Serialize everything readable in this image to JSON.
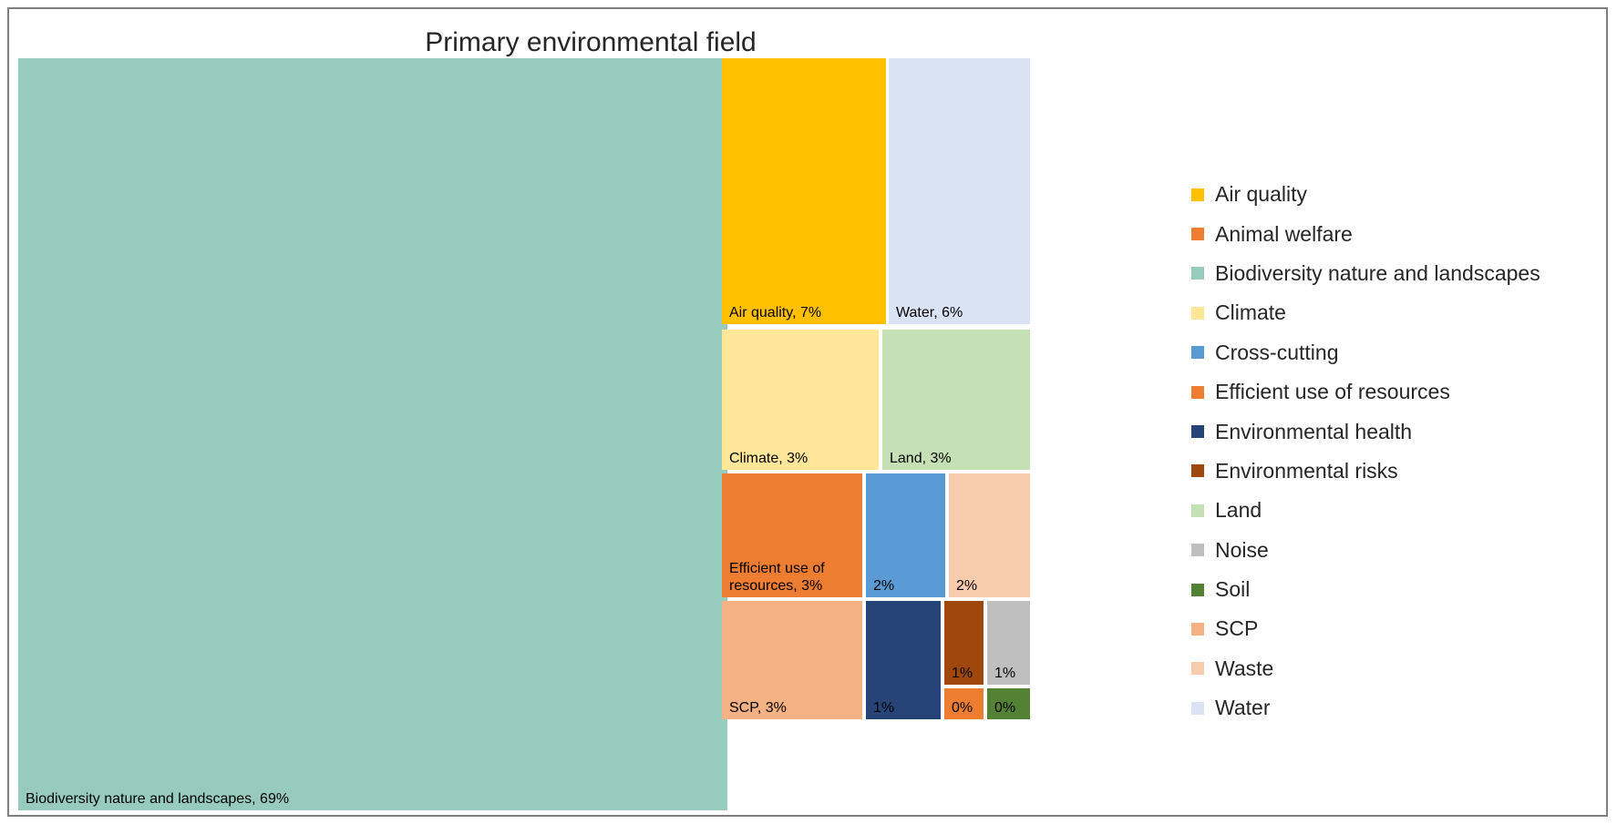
{
  "chart_data": {
    "type": "treemap",
    "title": "Primary environmental field",
    "value_unit": "%",
    "legend_position": "right",
    "series": [
      {
        "name": "Air quality",
        "value": 7,
        "color": "#FFC000"
      },
      {
        "name": "Animal welfare",
        "value": 0,
        "color": "#ED7D31"
      },
      {
        "name": "Biodiversity nature and landscapes",
        "value": 69,
        "color": "#96CBBD"
      },
      {
        "name": "Climate",
        "value": 3,
        "color": "#FFE699"
      },
      {
        "name": "Cross-cutting",
        "value": 2,
        "color": "#5B9BD5"
      },
      {
        "name": "Efficient use of resources",
        "value": 3,
        "color": "#ED7D31"
      },
      {
        "name": "Environmental health",
        "value": 1,
        "color": "#264478"
      },
      {
        "name": "Environmental risks",
        "value": 1,
        "color": "#9E480E"
      },
      {
        "name": "Land",
        "value": 3,
        "color": "#C5E0B4"
      },
      {
        "name": "Noise",
        "value": 1,
        "color": "#BFBFBF"
      },
      {
        "name": "Soil",
        "value": 0,
        "color": "#548235"
      },
      {
        "name": "SCP",
        "value": 3,
        "color": "#F4B183"
      },
      {
        "name": "Waste",
        "value": 2,
        "color": "#F8CBAD"
      },
      {
        "name": "Water",
        "value": 6,
        "color": "#DAE3F3"
      }
    ],
    "tile_labels": [
      {
        "series": "Biodiversity nature and landscapes",
        "text": "Biodiversity nature and landscapes, 69%",
        "color": "#000000"
      },
      {
        "series": "Air quality",
        "text": "Air quality, 7%",
        "color": "#000000"
      },
      {
        "series": "Water",
        "text": "Water, 6%",
        "color": "#000000"
      },
      {
        "series": "Climate",
        "text": "Climate, 3%",
        "color": "#000000"
      },
      {
        "series": "Land",
        "text": "Land, 3%",
        "color": "#000000"
      },
      {
        "series": "Efficient use of resources",
        "text": "Efficient use of\nresources, 3%",
        "color": "#000000"
      },
      {
        "series": "Cross-cutting",
        "text": "2%",
        "color": "#000000"
      },
      {
        "series": "Waste",
        "text": "2%",
        "color": "#000000"
      },
      {
        "series": "SCP",
        "text": "SCP, 3%",
        "color": "#000000"
      },
      {
        "series": "Environmental health",
        "text": "1%",
        "color": "#000000"
      },
      {
        "series": "Environmental risks",
        "text": "1%",
        "color": "#000000"
      },
      {
        "series": "Noise",
        "text": "1%",
        "color": "#000000"
      },
      {
        "series": "Animal welfare",
        "text": "0%",
        "color": "#000000"
      },
      {
        "series": "Soil",
        "text": "0%",
        "color": "#000000"
      }
    ]
  }
}
